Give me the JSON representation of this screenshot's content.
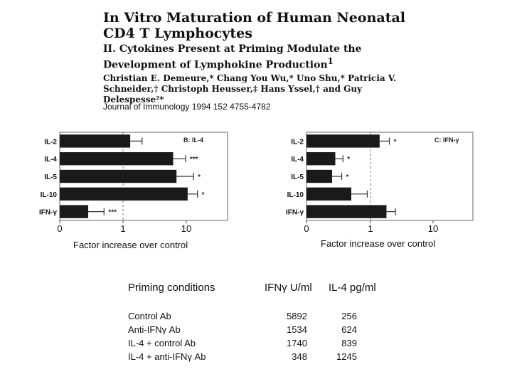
{
  "header": {
    "title": "In Vitro Maturation of Human Neonatal CD4 T Lymphocytes",
    "subtitle": "II. Cytokines Present at Priming Modulate the Development of Lymphokine Production",
    "subtitle_mark": "1",
    "authors": "Christian E. Demeure,* Chang You Wu,* Uno Shu,* Patricia V. Schneider,† Christoph Heusser,‡ Hans Yssel,† and Guy Delespesse²*"
  },
  "journal": "Journal of Immunology 1994 152 4755-4782",
  "chart_data": [
    {
      "type": "bar",
      "orientation": "horizontal",
      "panel_label": "B: IL-4",
      "categories": [
        "IL-2",
        "IL-4",
        "IL-5",
        "IL-10",
        "IFN-γ"
      ],
      "values": [
        1.3,
        6.2,
        7.0,
        10.5,
        0.45
      ],
      "errors": [
        0.7,
        3.5,
        6.0,
        4.5,
        0.25
      ],
      "significance": [
        "",
        "***",
        "*",
        "*",
        "***"
      ],
      "xscale": "log-like",
      "xticks": [
        0,
        1,
        10
      ],
      "xlabel": "Factor increase over control",
      "reference_line": 1
    },
    {
      "type": "bar",
      "orientation": "horizontal",
      "panel_label": "C: IFN-γ",
      "categories": [
        "IL-2",
        "IL-4",
        "IL-5",
        "IL-10",
        "IFN-γ"
      ],
      "values": [
        1.4,
        0.45,
        0.4,
        0.7,
        1.8
      ],
      "errors": [
        0.6,
        0.12,
        0.15,
        0.25,
        0.7
      ],
      "significance": [
        "*",
        "*",
        "*",
        "",
        ""
      ],
      "xscale": "log-like",
      "xticks": [
        0,
        1,
        10
      ],
      "xlabel": "Factor increase over control",
      "reference_line": 1
    }
  ],
  "table": {
    "headers": [
      "Priming conditions",
      "IFNγ U/ml",
      "IL-4 pg/ml"
    ],
    "rows": [
      {
        "condition": "Control Ab",
        "ifng": "5892",
        "il4": "256"
      },
      {
        "condition": "Anti-IFNγ Ab",
        "ifng": "1534",
        "il4": "624"
      },
      {
        "condition": "IL-4 + control Ab",
        "ifng": "1740",
        "il4": "839"
      },
      {
        "condition": "IL-4 + anti-IFNγ Ab",
        "ifng": "348",
        "il4": "1245"
      }
    ]
  },
  "colors": {
    "bar": "#1a1a1a",
    "background": "#ffffff",
    "text": "#111111"
  }
}
